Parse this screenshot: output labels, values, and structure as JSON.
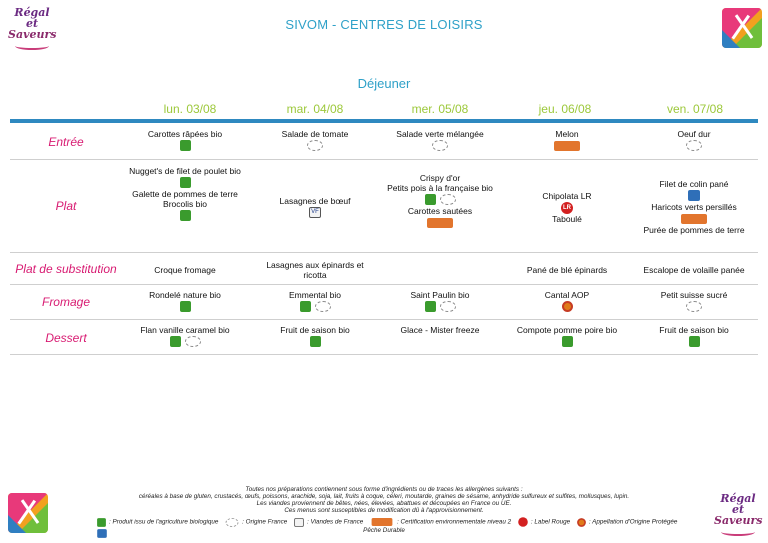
{
  "logo": {
    "line1": "Régal et",
    "line2": "Saveurs"
  },
  "header": {
    "title": "SIVOM - CENTRES DE LOISIRS",
    "meal": "Déjeuner"
  },
  "days": [
    "lun. 03/08",
    "mar. 04/08",
    "mer. 05/08",
    "jeu. 06/08",
    "ven. 07/08"
  ],
  "categories": {
    "entree": "Entrée",
    "plat": "Plat",
    "substitution": "Plat de substitution",
    "fromage": "Fromage",
    "dessert": "Dessert"
  },
  "menu": {
    "entree": [
      {
        "lines": [
          "Carottes râpées bio"
        ],
        "icons": [
          "bio"
        ]
      },
      {
        "lines": [
          "Salade de tomate"
        ],
        "icons": [
          "origine-france"
        ]
      },
      {
        "lines": [
          "Salade verte mélangée"
        ],
        "icons": [
          "origine-france"
        ]
      },
      {
        "lines": [
          "Melon"
        ],
        "icons": [
          "hve"
        ]
      },
      {
        "lines": [
          "Oeuf dur"
        ],
        "icons": [
          "origine-france"
        ]
      }
    ],
    "plat": {
      "mon": {
        "l1": "Nugget's de filet de poulet bio",
        "l2": "Galette de pommes de terre",
        "l3": "Brocolis bio"
      },
      "tue": {
        "l1": "Lasagnes de bœuf"
      },
      "wed": {
        "l1": "Crispy d'or",
        "l2": "Petits pois à la française bio",
        "l3": "Carottes sautées"
      },
      "thu": {
        "l1": "Chipolata LR",
        "l2": "Taboulé"
      },
      "fri": {
        "l1": "Filet de colin pané",
        "l2": "Haricots verts persillés",
        "l3": "Purée de pommes de terre"
      }
    },
    "substitution": {
      "mon": {
        "l1": "Croque fromage"
      },
      "tue": {
        "l1": "Lasagnes aux épinards et",
        "l2": "ricotta"
      },
      "thu": {
        "l1": "Pané de blé épinards"
      },
      "fri": {
        "l1": "Escalope de volaille panée"
      }
    },
    "fromage": [
      {
        "lines": [
          "Rondelé nature bio"
        ],
        "icons": [
          "bio"
        ]
      },
      {
        "lines": [
          "Emmental bio"
        ],
        "icons": [
          "bio",
          "origine-france"
        ]
      },
      {
        "lines": [
          "Saint Paulin bio"
        ],
        "icons": [
          "bio",
          "origine-france"
        ]
      },
      {
        "lines": [
          "Cantal AOP"
        ],
        "icons": [
          "aop"
        ]
      },
      {
        "lines": [
          "Petit suisse sucré"
        ],
        "icons": [
          "origine-france"
        ]
      }
    ],
    "dessert": [
      {
        "lines": [
          "Flan vanille caramel bio"
        ],
        "icons": [
          "bio",
          "origine-france"
        ]
      },
      {
        "lines": [
          "Fruit de saison bio"
        ],
        "icons": [
          "bio"
        ]
      },
      {
        "lines": [
          "Glace - Mister freeze"
        ],
        "icons": []
      },
      {
        "lines": [
          "Compote pomme poire bio"
        ],
        "icons": [
          "bio"
        ]
      },
      {
        "lines": [
          "Fruit de saison bio"
        ],
        "icons": [
          "bio"
        ]
      }
    ]
  },
  "footer": {
    "line1": "Toutes nos préparations contiennent sous forme d'ingrédients ou de traces les allergènes suivants :",
    "line2": "céréales à base de gluten, crustacés, œufs, poissons, arachide, soja, lait, fruits à coque, céleri, moutarde, graines de sésame, anhydride sulfureux et sulfites, mollusques, lupin.",
    "line3": "Les viandes proviennent de bêtes, nées, élevées, abattues et découpées en France ou UE.",
    "line4": "Ces menus sont susceptibles de modification dû à l'approvisionnement."
  },
  "legend": {
    "bio": ": Produit issu de l'agriculture biologique",
    "origine_france": ": Origine France",
    "viandes_france": ": Viandes de France",
    "hve": ": Certification environnementale niveau 2",
    "label_rouge": ": Label Rouge",
    "aop": ": Appellation d'Origine Protégée",
    "peche": "Pêche Durable"
  },
  "colors": {
    "title": "#2fa1c8",
    "days": "#9cc83a",
    "category": "#d81b72",
    "rule": "#2e89c0"
  }
}
